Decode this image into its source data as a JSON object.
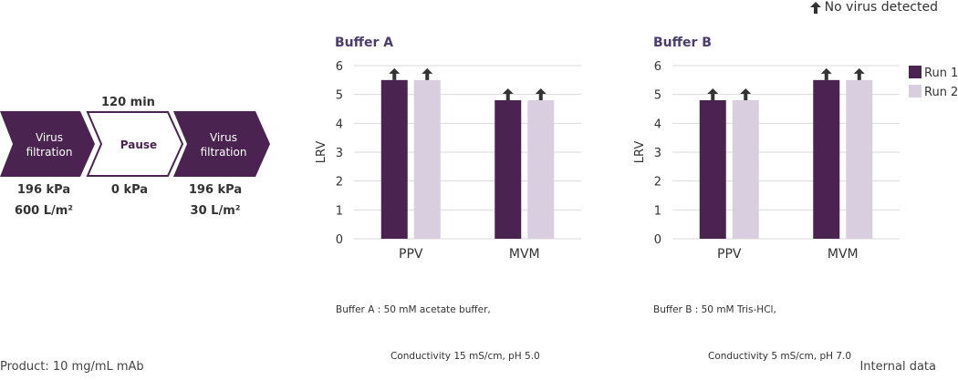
{
  "note": {
    "icon": "up-arrow-icon",
    "text": "No virus detected"
  },
  "footer": {
    "left": "Product: 10 mg/mL mAb",
    "right": "Internal data"
  },
  "process": {
    "pause_time": "120 min",
    "steps": [
      {
        "label_line1": "Virus",
        "label_line2": "filtration",
        "under_line1": "196 kPa",
        "under_line2": "600 L/m²"
      },
      {
        "label_line1": "Pause",
        "label_line2": "",
        "under_line1": "0 kPa",
        "under_line2": ""
      },
      {
        "label_line1": "Virus",
        "label_line2": "filtration",
        "under_line1": "196 kPa",
        "under_line2": "30 L/m²"
      }
    ]
  },
  "colors": {
    "run1": "#4a2350",
    "run2": "#d8cee0",
    "title": "#4a3d6e",
    "grid": "#d9d9d9",
    "arrow": "#333333"
  },
  "legend": [
    "Run 1",
    "Run 2"
  ],
  "chart_data": [
    {
      "type": "bar",
      "title": "Buffer A",
      "ylabel": "LRV",
      "xlabel": "",
      "ylim": [
        0,
        6
      ],
      "yticks": [
        0,
        1,
        2,
        3,
        4,
        5,
        6
      ],
      "grid": true,
      "categories": [
        "PPV",
        "MVM"
      ],
      "series": [
        {
          "name": "Run 1",
          "values": [
            5.5,
            4.8
          ]
        },
        {
          "name": "Run 2",
          "values": [
            5.5,
            4.8
          ]
        }
      ],
      "annotation": "up arrow on every bar (no virus detected)",
      "note_line1": "Buffer A : 50 mM acetate buffer,",
      "note_line2": "Conductivity 15 mS/cm, pH 5.0",
      "legend": false
    },
    {
      "type": "bar",
      "title": "Buffer B",
      "ylabel": "LRV",
      "xlabel": "",
      "ylim": [
        0,
        6
      ],
      "yticks": [
        0,
        1,
        2,
        3,
        4,
        5,
        6
      ],
      "grid": true,
      "categories": [
        "PPV",
        "MVM"
      ],
      "series": [
        {
          "name": "Run 1",
          "values": [
            4.8,
            5.5
          ]
        },
        {
          "name": "Run 2",
          "values": [
            4.8,
            5.5
          ]
        }
      ],
      "annotation": "up arrow on every bar (no virus detected)",
      "note_line1": "Buffer B : 50 mM Tris-HCl,",
      "note_line2": "Conductivity 5 mS/cm, pH 7.0",
      "legend": "right"
    }
  ]
}
